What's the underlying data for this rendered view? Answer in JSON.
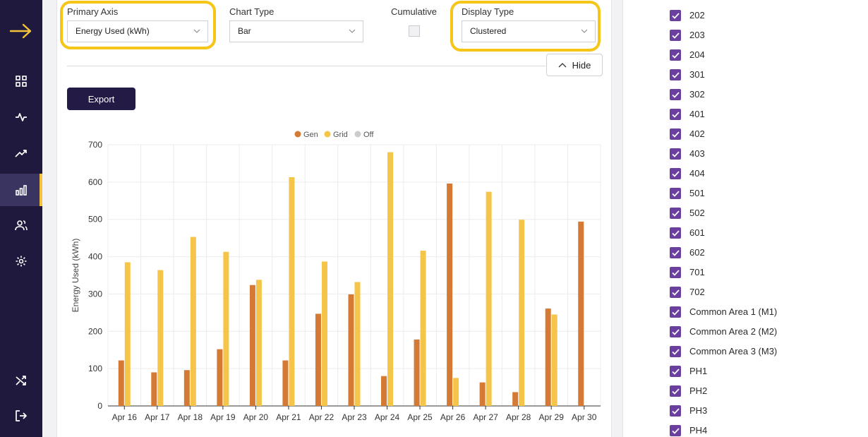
{
  "controls": {
    "primary_axis": {
      "label": "Primary Axis",
      "value": "Energy Used (kWh)"
    },
    "chart_type": {
      "label": "Chart Type",
      "value": "Bar"
    },
    "cumulative": {
      "label": "Cumulative",
      "checked": false
    },
    "display_type": {
      "label": "Display Type",
      "value": "Clustered"
    },
    "hide_label": "Hide",
    "export_label": "Export"
  },
  "colors": {
    "gen": "#d47a34",
    "grid": "#f5c54a",
    "off": "#cccccc",
    "accent": "#f5c518",
    "sidebar": "#1f1a3d",
    "check": "#6b3fa0"
  },
  "nav": [
    "logo-arrow-icon",
    "dashboard-grid-icon",
    "activity-icon",
    "trending-icon",
    "bar-chart-icon",
    "users-icon",
    "settings-icon",
    "shuffle-icon",
    "logout-icon"
  ],
  "units": [
    "202",
    "203",
    "204",
    "301",
    "302",
    "401",
    "402",
    "403",
    "404",
    "501",
    "502",
    "601",
    "602",
    "701",
    "702",
    "Common Area 1 (M1)",
    "Common Area 2 (M2)",
    "Common Area 3 (M3)",
    "PH1",
    "PH2",
    "PH3",
    "PH4"
  ],
  "chart_data": {
    "type": "bar",
    "categories": [
      "Apr 16",
      "Apr 17",
      "Apr 18",
      "Apr 19",
      "Apr 20",
      "Apr 21",
      "Apr 22",
      "Apr 23",
      "Apr 24",
      "Apr 25",
      "Apr 26",
      "Apr 27",
      "Apr 28",
      "Apr 29",
      "Apr 30"
    ],
    "series": [
      {
        "name": "Gen",
        "values": [
          122,
          90,
          96,
          152,
          324,
          122,
          247,
          299,
          80,
          178,
          596,
          63,
          37,
          261,
          494
        ]
      },
      {
        "name": "Grid",
        "values": [
          385,
          364,
          453,
          413,
          338,
          613,
          387,
          332,
          680,
          416,
          75,
          574,
          499,
          245,
          0
        ]
      },
      {
        "name": "Off",
        "values": [
          0,
          0,
          0,
          0,
          0,
          0,
          0,
          0,
          0,
          0,
          0,
          0,
          0,
          0,
          0
        ]
      }
    ],
    "ylabel": "Energy Used (kWh)",
    "xlabel": "",
    "ylim": [
      0,
      700
    ],
    "yticks": [
      "0",
      "100",
      "200",
      "300",
      "400",
      "500",
      "600",
      "700"
    ],
    "legend": "top-center",
    "grid": true
  }
}
